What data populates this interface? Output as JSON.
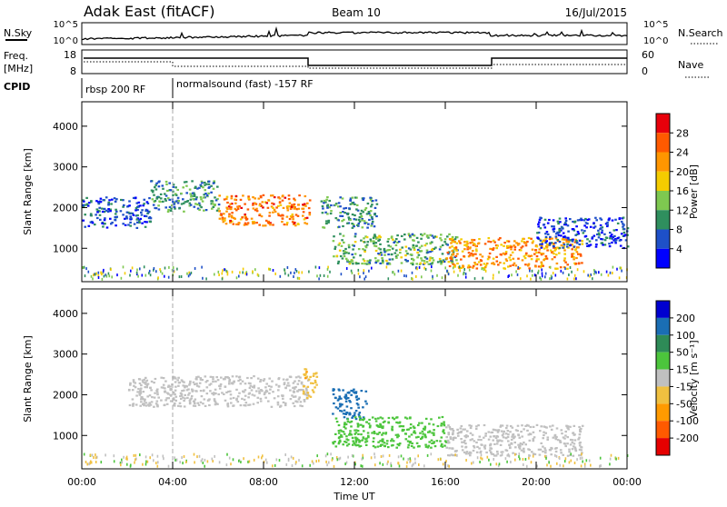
{
  "header": {
    "site": "Adak East (fitACF)",
    "beam": "Beam 10",
    "date": "16/Jul/2015"
  },
  "top_panel": {
    "left_label": "N.Sky",
    "right_label": "N.Search",
    "left_ticks": [
      "10^5",
      "10^0"
    ],
    "right_ticks": [
      "10^5",
      "10^0"
    ]
  },
  "freq_panel": {
    "left_label_1": "Freq.",
    "left_label_2": "[MHz]",
    "left_ticks": [
      "18",
      "8"
    ],
    "right_ticks": [
      "60",
      "0"
    ],
    "right_label": "Nave"
  },
  "cpid": {
    "label": "CPID",
    "modes": [
      "rbsp 200 RF",
      "normalsound (fast) -157 RF"
    ]
  },
  "power_colorbar": {
    "title": "Power [dB]",
    "ticks": [
      "28",
      "24",
      "20",
      "16",
      "12",
      "8",
      "4"
    ],
    "colors": [
      "#e8000b",
      "#ff5a00",
      "#ff9600",
      "#f4cc00",
      "#7ec850",
      "#2f8f5e",
      "#1e50c8",
      "#0000ff"
    ]
  },
  "velocity_colorbar": {
    "title": "Velocity [m s⁻¹]",
    "ticks": [
      "200",
      "100",
      "50",
      "15",
      "-15",
      "-50",
      "-100",
      "-200"
    ],
    "colors": [
      "#0000d0",
      "#1a6eb4",
      "#2e8b57",
      "#4cc53c",
      "#c0c0c0",
      "#f0c040",
      "#ff9a00",
      "#ff5a00",
      "#e60000"
    ]
  },
  "chart_data": [
    {
      "type": "heatmap",
      "name": "Power",
      "xlabel": "Time UT",
      "ylabel": "Slant Range [km]",
      "x_ticks": [
        "00:00",
        "04:00",
        "08:00",
        "12:00",
        "16:00",
        "20:00",
        "00:00"
      ],
      "y_ticks": [
        "1000",
        "2000",
        "3000",
        "4000"
      ],
      "xlim_hours": [
        0,
        24
      ],
      "ylim_km": [
        180,
        4600
      ],
      "features": [
        {
          "t_start": 0.0,
          "t_end": 3.0,
          "range_km": 1900,
          "value_db": 6
        },
        {
          "t_start": 3.0,
          "t_end": 6.0,
          "range_km": 2300,
          "value_db": 10
        },
        {
          "t_start": 6.0,
          "t_end": 10.0,
          "range_km": 1950,
          "value_db": 24
        },
        {
          "t_start": 10.5,
          "t_end": 13.0,
          "range_km": 1900,
          "value_db": 10
        },
        {
          "t_start": 11.0,
          "t_end": 16.5,
          "range_km": 1000,
          "value_db": 12
        },
        {
          "t_start": 16.0,
          "t_end": 22.0,
          "range_km": 900,
          "value_db": 22
        },
        {
          "t_start": 20.0,
          "t_end": 24.0,
          "range_km": 1400,
          "value_db": 5
        }
      ]
    },
    {
      "type": "heatmap",
      "name": "Velocity",
      "xlabel": "Time UT",
      "ylabel": "Slant Range [km]",
      "x_ticks": [
        "00:00",
        "04:00",
        "08:00",
        "12:00",
        "16:00",
        "20:00",
        "00:00"
      ],
      "y_ticks": [
        "1000",
        "2000",
        "3000",
        "4000"
      ],
      "xlim_hours": [
        0,
        24
      ],
      "ylim_km": [
        180,
        4600
      ],
      "features": [
        {
          "t_start": 2.0,
          "t_end": 10.0,
          "range_km": 2100,
          "value_ms": 0
        },
        {
          "t_start": 11.0,
          "t_end": 12.5,
          "range_km": 1800,
          "value_ms": 180
        },
        {
          "t_start": 11.0,
          "t_end": 16.0,
          "range_km": 1100,
          "value_ms": 30
        },
        {
          "t_start": 16.0,
          "t_end": 22.0,
          "range_km": 900,
          "value_ms": 0
        },
        {
          "t_start": 9.7,
          "t_end": 10.3,
          "range_km": 2300,
          "value_ms": -40
        }
      ]
    }
  ]
}
